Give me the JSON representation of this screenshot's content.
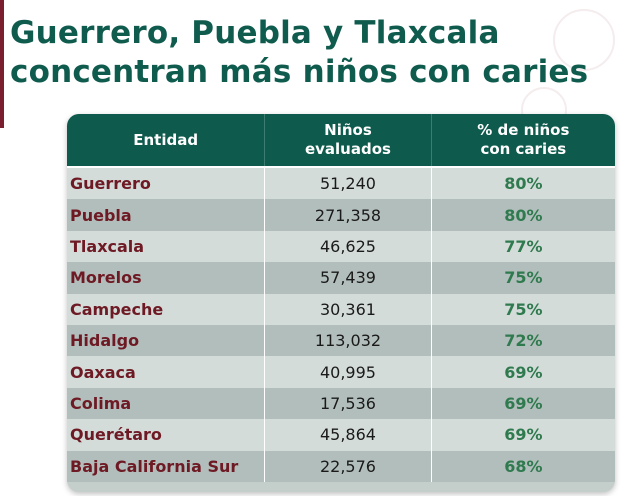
{
  "title": {
    "line1": "Guerrero, Puebla y Tlaxcala",
    "line2": "concentran más niños con caries"
  },
  "table": {
    "headers": {
      "entidad": "Entidad",
      "evaluados_line1": "Niños",
      "evaluados_line2": "evaluados",
      "pct_line1": "% de niños",
      "pct_line2": "con caries"
    },
    "rows": [
      {
        "entidad": "Guerrero",
        "evaluados": "51,240",
        "pct": "80%"
      },
      {
        "entidad": "Puebla",
        "evaluados": "271,358",
        "pct": "80%"
      },
      {
        "entidad": "Tlaxcala",
        "evaluados": "46,625",
        "pct": "77%"
      },
      {
        "entidad": "Morelos",
        "evaluados": "57,439",
        "pct": "75%"
      },
      {
        "entidad": "Campeche",
        "evaluados": "30,361",
        "pct": "75%"
      },
      {
        "entidad": "Hidalgo",
        "evaluados": "113,032",
        "pct": "72%"
      },
      {
        "entidad": "Oaxaca",
        "evaluados": "40,995",
        "pct": "69%"
      },
      {
        "entidad": "Colima",
        "evaluados": "17,536",
        "pct": "69%"
      },
      {
        "entidad": "Querétaro",
        "evaluados": "45,864",
        "pct": "69%"
      },
      {
        "entidad": "Baja California Sur",
        "evaluados": "22,576",
        "pct": "68%"
      }
    ]
  },
  "colors": {
    "title": "#0f5b4d",
    "header_bg": "#0e5a4d",
    "entity_text": "#6e1a24",
    "pct_text": "#2f7a4e",
    "accent_bar": "#7a1f2e"
  }
}
